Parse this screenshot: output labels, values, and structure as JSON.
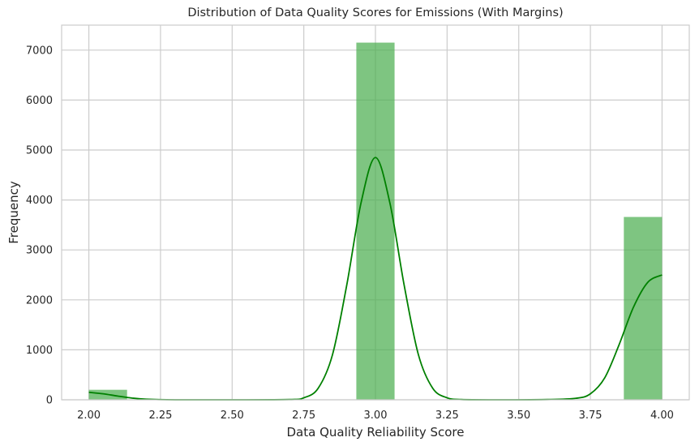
{
  "chart_data": {
    "type": "bar",
    "title": "Distribution of Data Quality Scores for Emissions (With Margins)",
    "xlabel": "Data Quality Reliability Score",
    "ylabel": "Frequency",
    "xlim": [
      1.905,
      4.095
    ],
    "ylim": [
      0,
      7500
    ],
    "x_ticks": [
      2.0,
      2.25,
      2.5,
      2.75,
      3.0,
      3.25,
      3.5,
      3.75,
      4.0
    ],
    "x_tick_labels": [
      "2.00",
      "2.25",
      "2.50",
      "2.75",
      "3.00",
      "3.25",
      "3.50",
      "3.75",
      "4.00"
    ],
    "y_ticks": [
      0,
      1000,
      2000,
      3000,
      4000,
      5000,
      6000,
      7000
    ],
    "y_tick_labels": [
      "0",
      "1000",
      "2000",
      "3000",
      "4000",
      "5000",
      "6000",
      "7000"
    ],
    "grid": true,
    "bar_color": "#4CAF50",
    "kde_color": "#008000",
    "bins": [
      {
        "x0": 2.0,
        "x1": 2.1333,
        "count": 200
      },
      {
        "x0": 2.1333,
        "x1": 2.2667,
        "count": 0
      },
      {
        "x0": 2.2667,
        "x1": 2.4,
        "count": 0
      },
      {
        "x0": 2.4,
        "x1": 2.5333,
        "count": 0
      },
      {
        "x0": 2.5333,
        "x1": 2.6667,
        "count": 0
      },
      {
        "x0": 2.6667,
        "x1": 2.8,
        "count": 0
      },
      {
        "x0": 2.8,
        "x1": 2.9333,
        "count": 0
      },
      {
        "x0": 2.9333,
        "x1": 3.0667,
        "count": 7150
      },
      {
        "x0": 3.0667,
        "x1": 3.2,
        "count": 0
      },
      {
        "x0": 3.2,
        "x1": 3.3333,
        "count": 0
      },
      {
        "x0": 3.3333,
        "x1": 3.4667,
        "count": 0
      },
      {
        "x0": 3.4667,
        "x1": 3.6,
        "count": 0
      },
      {
        "x0": 3.6,
        "x1": 3.7333,
        "count": 0
      },
      {
        "x0": 3.7333,
        "x1": 3.8667,
        "count": 0
      },
      {
        "x0": 3.8667,
        "x1": 4.0,
        "count": 3660
      }
    ],
    "kde_curve": {
      "x": [
        2.0,
        2.05,
        2.1,
        2.15,
        2.2,
        2.3,
        2.5,
        2.7,
        2.75,
        2.8,
        2.85,
        2.9,
        2.95,
        3.0,
        3.05,
        3.1,
        3.15,
        3.2,
        3.25,
        3.3,
        3.4,
        3.6,
        3.7,
        3.75,
        3.8,
        3.85,
        3.9,
        3.95,
        4.0
      ],
      "y": [
        150,
        120,
        75,
        35,
        12,
        0,
        0,
        5,
        40,
        230,
        900,
        2300,
        3950,
        4850,
        3950,
        2300,
        900,
        230,
        40,
        5,
        0,
        5,
        30,
        120,
        440,
        1100,
        1850,
        2350,
        2500
      ]
    }
  }
}
